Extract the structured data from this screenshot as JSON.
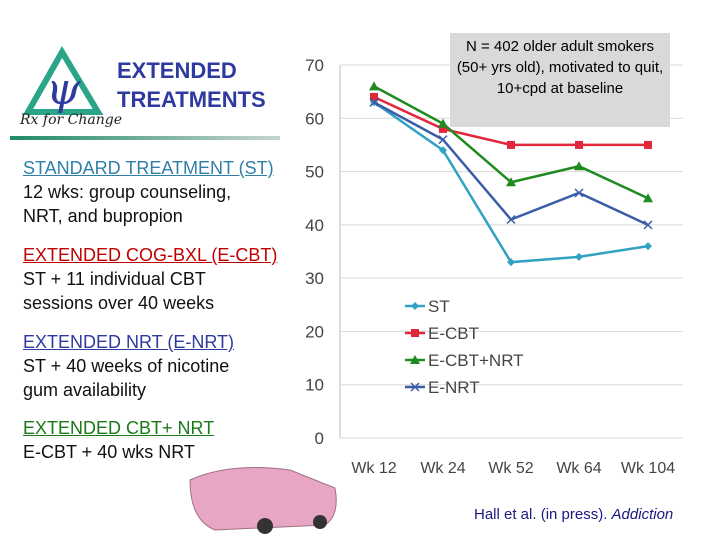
{
  "header": {
    "title_line1": "EXTENDED",
    "title_line2": "TREATMENTS",
    "logo_text": "Rx for Change"
  },
  "groups": [
    {
      "heading": "STANDARD TREATMENT (ST)",
      "lines": [
        "12 wks: group counseling,",
        "NRT, and bupropion"
      ],
      "color": "#2f7fa8"
    },
    {
      "heading": "EXTENDED COG-BXL (E-CBT)",
      "lines": [
        "ST + 11 individual CBT",
        "sessions over 40 weeks"
      ],
      "color": "#c00000"
    },
    {
      "heading": "EXTENDED NRT (E-NRT)",
      "lines": [
        "ST + 40 weeks of nicotine",
        "gum availability"
      ],
      "color": "#2e3a9f"
    },
    {
      "heading": "EXTENDED CBT+ NRT",
      "lines": [
        "E-CBT + 40 wks NRT"
      ],
      "color": "#1a7a1a"
    }
  ],
  "note": "N = 402 older adult smokers (50+ yrs old), motivated to quit, 10+cpd at baseline",
  "citation": {
    "authors": "Hall et al. (in press). ",
    "journal": "Addiction"
  },
  "chart_data": {
    "type": "line",
    "categories": [
      "Wk 12",
      "Wk 24",
      "Wk 52",
      "Wk 64",
      "Wk 104"
    ],
    "ylim": [
      0,
      70
    ],
    "yticks": [
      0,
      10,
      20,
      30,
      40,
      50,
      60,
      70
    ],
    "grid": true,
    "legend": "center-left",
    "series": [
      {
        "name": "ST",
        "values": [
          63,
          54,
          33,
          34,
          36
        ],
        "color": "#31a2c4",
        "marker": "diamond"
      },
      {
        "name": "E-CBT",
        "values": [
          64,
          58,
          55,
          55,
          55
        ],
        "color": "#e0283a",
        "marker": "square"
      },
      {
        "name": "E-CBT+NRT",
        "values": [
          66,
          59,
          48,
          51,
          45
        ],
        "color": "#1f8a1f",
        "marker": "triangle"
      },
      {
        "name": "E-NRT",
        "values": [
          63,
          56,
          41,
          46,
          40
        ],
        "color": "#3a5da8",
        "marker": "x"
      }
    ]
  }
}
